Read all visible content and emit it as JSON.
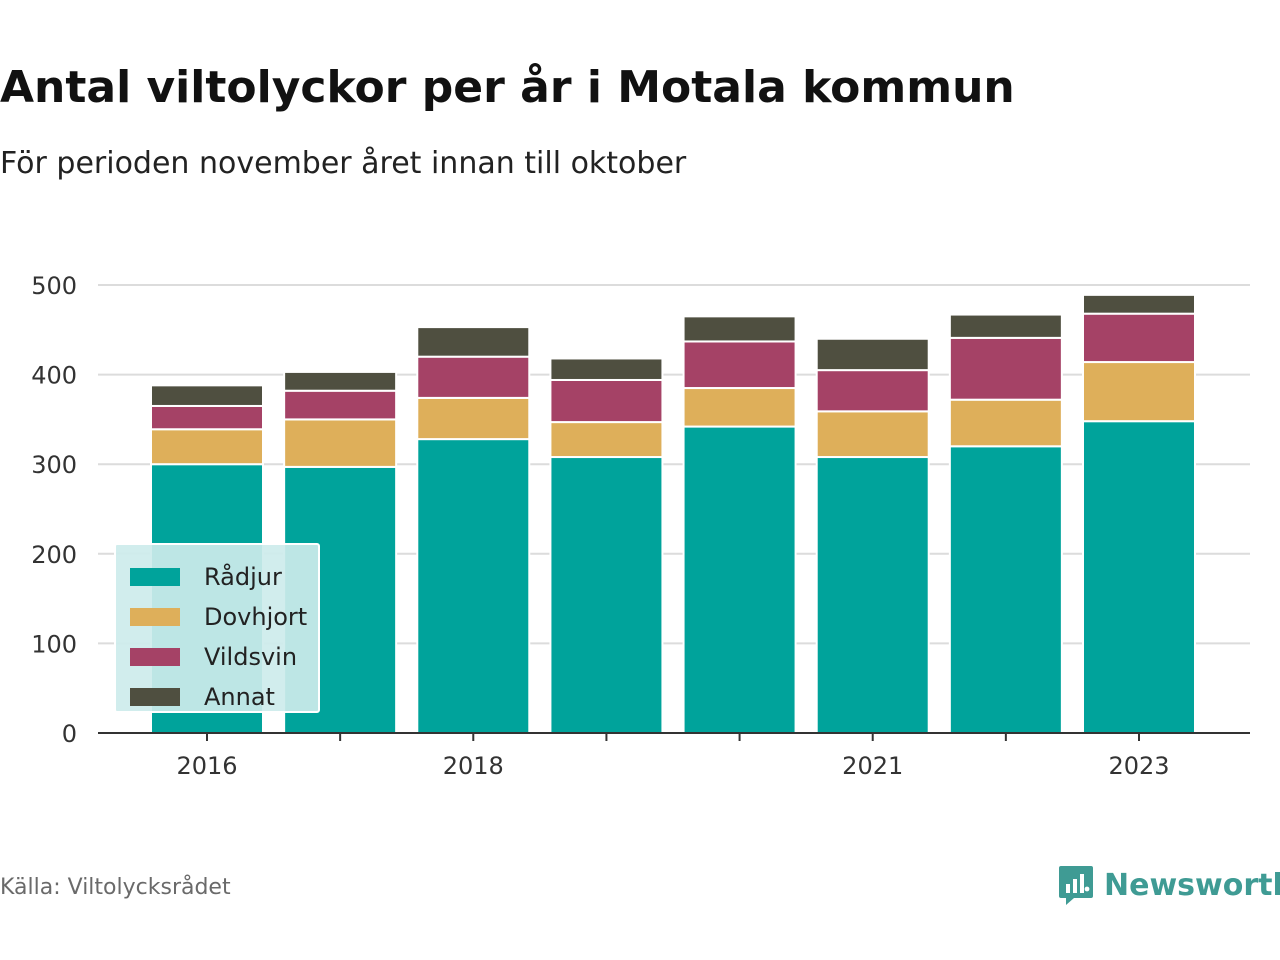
{
  "header": {
    "title": "Antal viltolyckor per år i Motala kommun",
    "subtitle": "För perioden november året innan till oktober"
  },
  "footer": {
    "source": "Källa: Viltolycksrådet",
    "brand": "Newsworthy",
    "brand_icon": "newsworthy-logo-icon"
  },
  "colors": {
    "Rådjur": "#00a39b",
    "Dovhjort": "#deaf5a",
    "Vildsvin": "#a54266",
    "Annat": "#4f4f40",
    "grid": "#dcdcdc",
    "axis": "#333333",
    "legend_bg": "#cdebeb"
  },
  "chart_data": {
    "type": "bar",
    "stacked": true,
    "categories": [
      "2016",
      "2017",
      "2018",
      "2019",
      "2020",
      "2021",
      "2022",
      "2023"
    ],
    "x_tick_labels": [
      "2016",
      "",
      "2018",
      "",
      "",
      "2021",
      "",
      "2023"
    ],
    "series": [
      {
        "name": "Rådjur",
        "values": [
          300,
          297,
          328,
          308,
          342,
          308,
          320,
          348
        ]
      },
      {
        "name": "Dovhjort",
        "values": [
          39,
          53,
          46,
          39,
          43,
          51,
          52,
          66
        ]
      },
      {
        "name": "Vildsvin",
        "values": [
          26,
          32,
          46,
          47,
          52,
          46,
          69,
          54
        ]
      },
      {
        "name": "Annat",
        "values": [
          23,
          21,
          33,
          24,
          28,
          35,
          26,
          21
        ]
      }
    ],
    "y_ticks": [
      0,
      100,
      200,
      300,
      400,
      500
    ],
    "ylim": [
      0,
      500
    ],
    "xlabel": "",
    "ylabel": "",
    "grid": true,
    "legend_position": "bottom-left"
  }
}
